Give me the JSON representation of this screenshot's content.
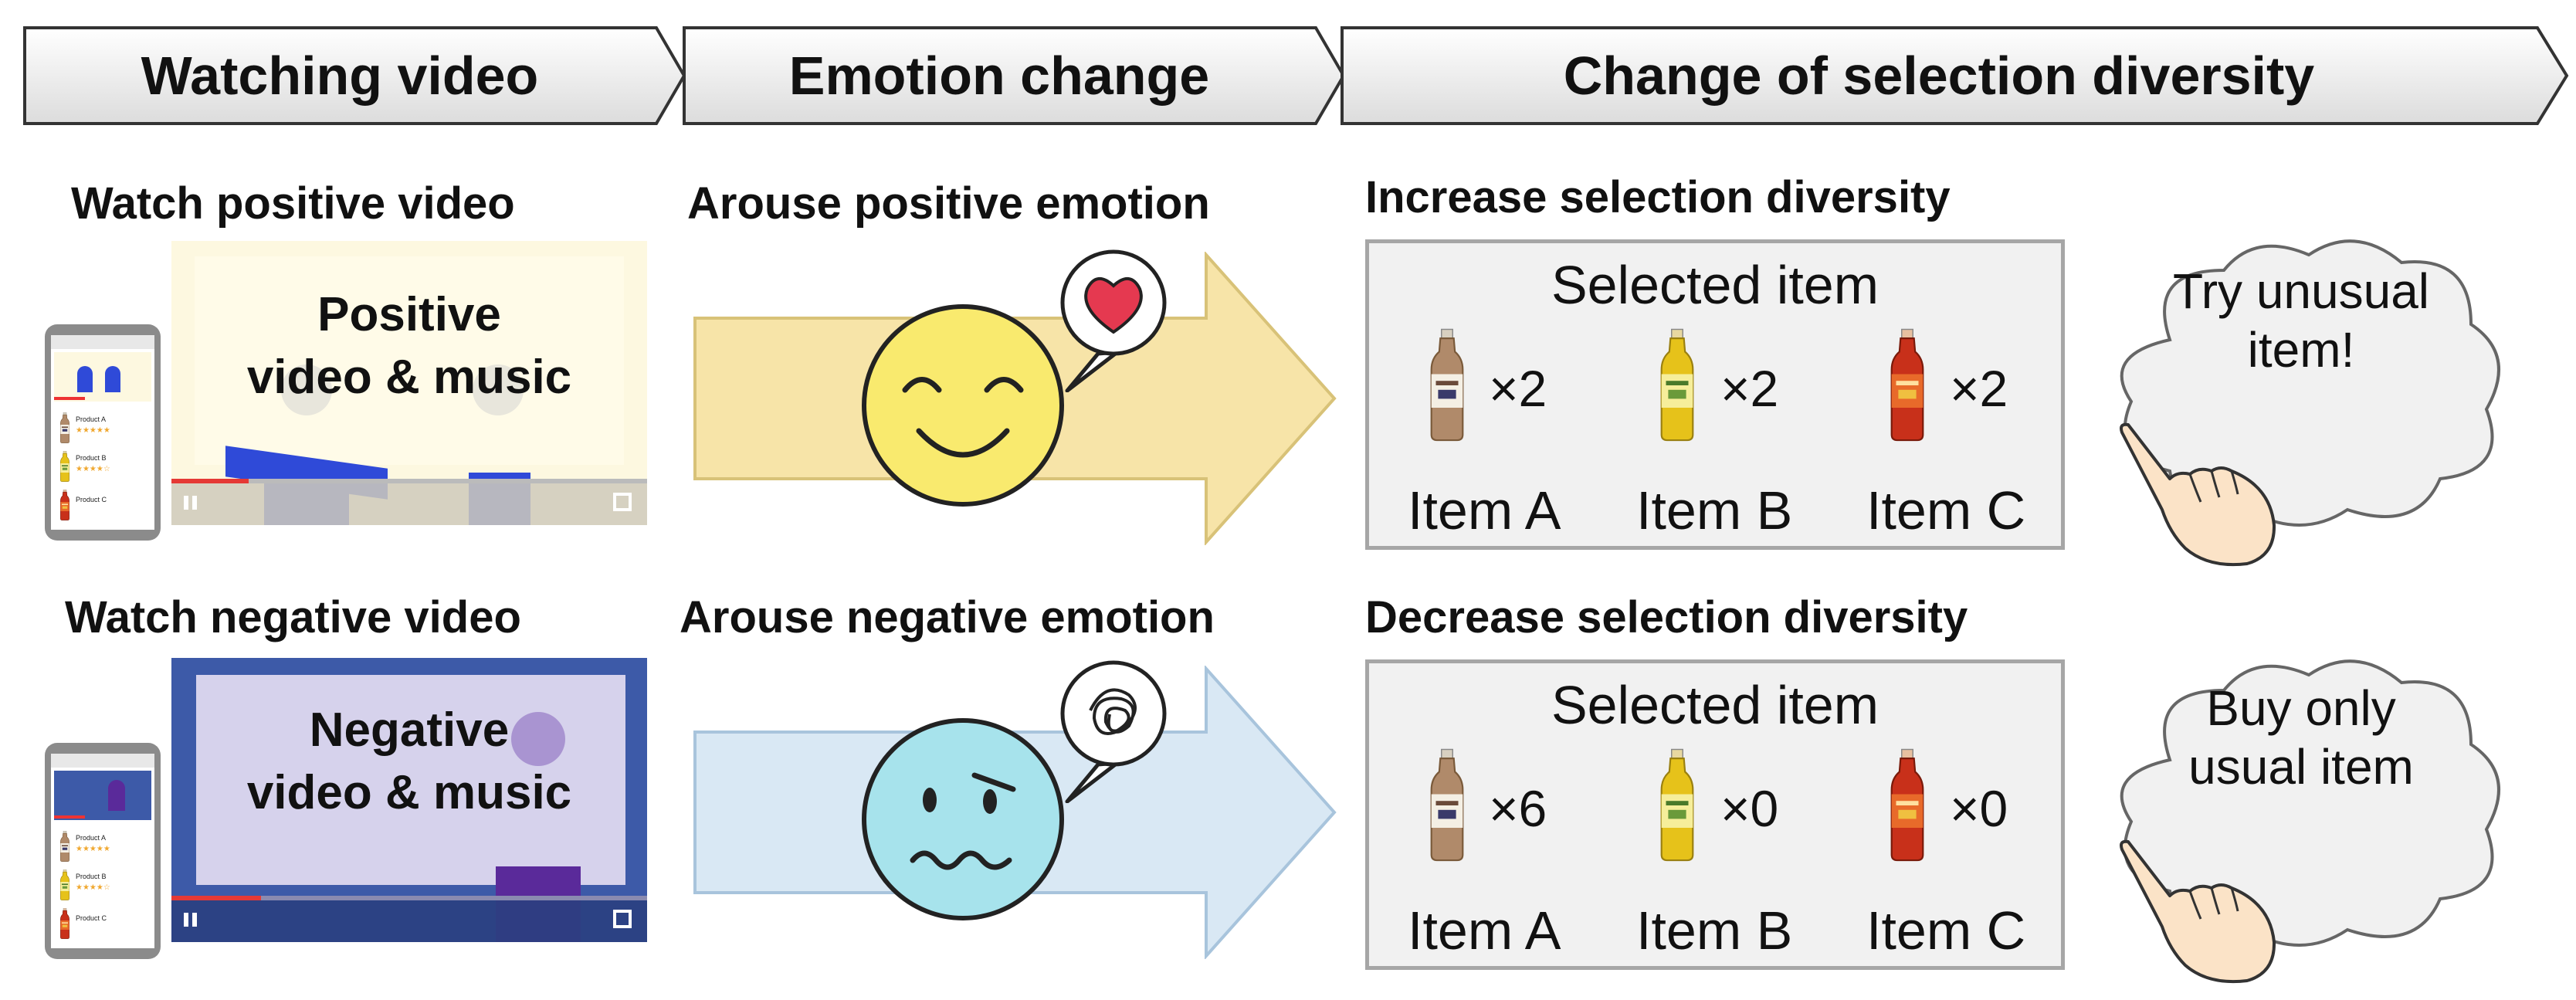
{
  "header": {
    "stage1": "Watching video",
    "stage2": "Emotion change",
    "stage3": "Change of selection diversity"
  },
  "positive": {
    "watch_title": "Watch positive video",
    "video_caption_line1": "Positive",
    "video_caption_line2": "video & music",
    "emotion_title": "Arouse positive emotion",
    "diversity_title": "Increase selection diversity",
    "box_title": "Selected item",
    "counts": [
      "×2",
      "×2",
      "×2"
    ],
    "items": [
      "Item A",
      "Item B",
      "Item C"
    ],
    "thought_line1": "Try unusual",
    "thought_line2": "item!",
    "products": [
      "Product A",
      "Product B",
      "Product C"
    ],
    "colors": {
      "arrow": "#f7e4a8",
      "video_bg": "#fdf8e0",
      "face": "#f9ea6e",
      "figure": "#2f4ad8"
    }
  },
  "negative": {
    "watch_title": "Watch negative video",
    "video_caption_line1": "Negative",
    "video_caption_line2": "video & music",
    "emotion_title": "Arouse negative emotion",
    "diversity_title": "Decrease selection diversity",
    "box_title": "Selected item",
    "counts": [
      "×6",
      "×0",
      "×0"
    ],
    "items": [
      "Item A",
      "Item B",
      "Item C"
    ],
    "thought_line1": "Buy only",
    "thought_line2": "usual item",
    "products": [
      "Product A",
      "Product B",
      "Product C"
    ],
    "colors": {
      "arrow": "#d9e8f4",
      "video_bg": "#3d5aa8",
      "face": "#a7e3ec",
      "figure": "#5a2a9a"
    }
  },
  "icons": {
    "heart": "heart-icon",
    "scribble": "scribble-icon",
    "bottle_a": "milk-tea-bottle-icon",
    "bottle_b": "green-tea-bottle-icon",
    "bottle_c": "black-tea-bottle-icon",
    "hand": "pointing-hand-icon"
  }
}
